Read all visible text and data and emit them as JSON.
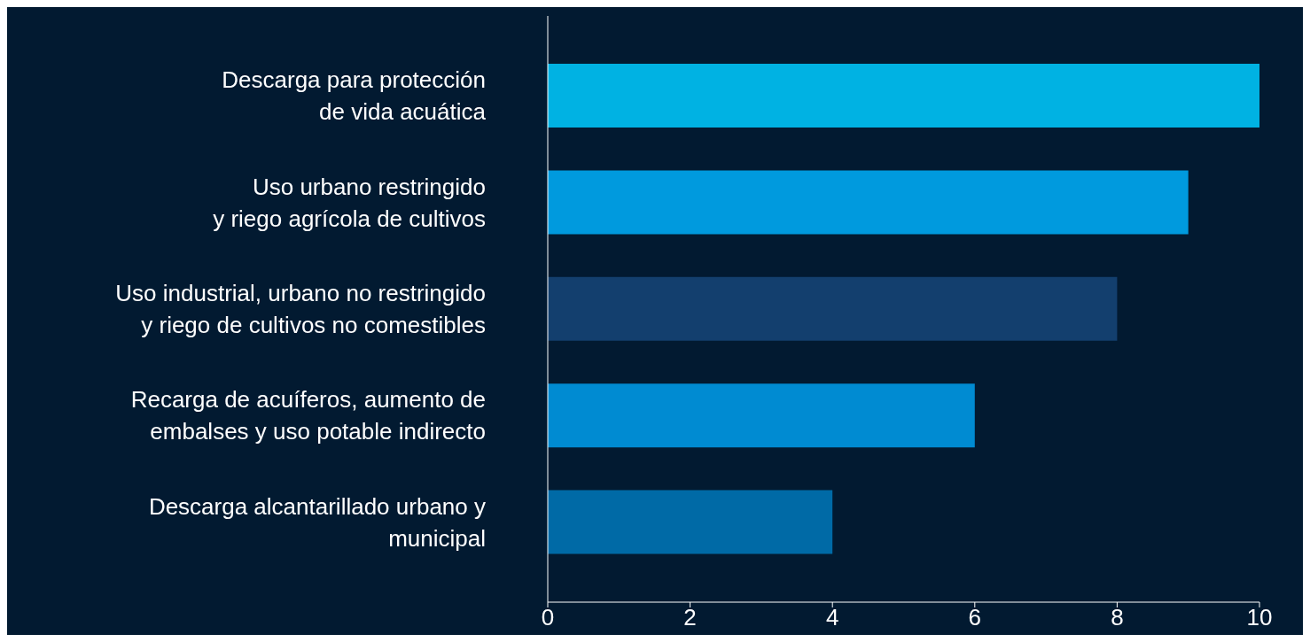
{
  "chart_data": {
    "type": "bar",
    "orientation": "horizontal",
    "categories": [
      "Descarga para protección\nde vida acuática",
      "Uso urbano restringido\ny riego agrícola de cultivos",
      "Uso industrial, urbano no restringido\ny riego de cultivos no comestibles",
      "Recarga de acuíferos, aumento de\nembalses y uso potable indirecto",
      "Descarga alcantarillado urbano y\nmunicipal"
    ],
    "values": [
      10,
      9,
      8,
      6,
      4
    ],
    "colors": [
      "#00b2e3",
      "#009ade",
      "#133f6e",
      "#008bd2",
      "#006aa6"
    ],
    "xlim": [
      0,
      10
    ],
    "xticks": [
      0,
      2,
      4,
      6,
      8,
      10
    ]
  }
}
